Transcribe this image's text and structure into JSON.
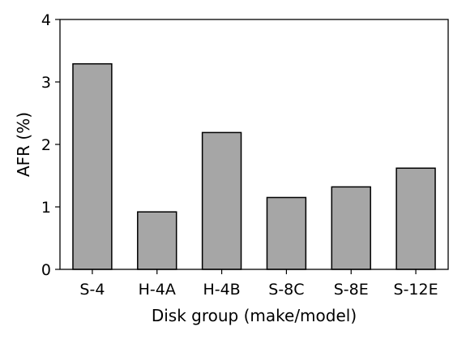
{
  "chart_data": {
    "type": "bar",
    "title": "",
    "xlabel": "Disk group (make/model)",
    "ylabel": "AFR (%)",
    "categories": [
      "S-4",
      "H-4A",
      "H-4B",
      "S-8C",
      "S-8E",
      "S-12E"
    ],
    "values": [
      3.29,
      0.92,
      2.19,
      1.15,
      1.32,
      1.62
    ],
    "ylim": [
      0,
      4
    ],
    "yticks": [
      "0",
      "1",
      "2",
      "3",
      "4"
    ],
    "grid": false,
    "legend": "none",
    "bar_color": "#a6a6a6",
    "edge_color": "#000000"
  }
}
